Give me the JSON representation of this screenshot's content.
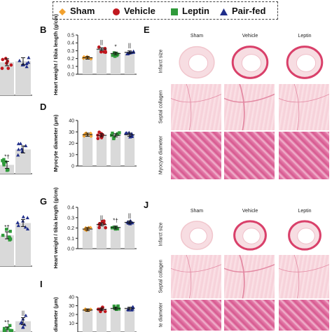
{
  "legend": {
    "items": [
      {
        "label": "Sham",
        "color": "#f2a12e",
        "marker": "diamond"
      },
      {
        "label": "Vehicle",
        "color": "#c0181f",
        "marker": "circle"
      },
      {
        "label": "Leptin",
        "color": "#2f9a3a",
        "marker": "square"
      },
      {
        "label": "Pair-fed",
        "color": "#1f2d8a",
        "marker": "triangle"
      }
    ]
  },
  "panels": {
    "B": "B",
    "D": "D",
    "E": "E",
    "G": "G",
    "I": "I",
    "J": "J"
  },
  "histology": {
    "E": {
      "columns": [
        "Sham",
        "Vehicle",
        "Leptin"
      ],
      "rows": [
        "Infarct size",
        "Septal collagen",
        "Myocyte diameter"
      ]
    },
    "J": {
      "columns": [
        "Sham",
        "Vehicle",
        "Leptin"
      ],
      "rows": [
        "Infarct size",
        "Septal collagen",
        "te diameter"
      ]
    }
  },
  "chart_data": [
    {
      "id": "A-partial",
      "type": "bar",
      "categories": [
        "Vehicle",
        "Pair-fed"
      ],
      "values": [
        null,
        null
      ],
      "points": [
        [
          0.5,
          0.62,
          0.55,
          0.66,
          0.58,
          0.5,
          0.6
        ],
        [
          0.6,
          0.66,
          0.55,
          0.63,
          0.68,
          0.58,
          0.64
        ]
      ]
    },
    {
      "id": "B",
      "type": "bar",
      "ylabel": "Heart weight / tibia length (g/cm)",
      "yticks": [
        "0.0",
        "0.1",
        "0.2",
        "0.3",
        "0.4",
        "0.5"
      ],
      "ylim": [
        0,
        0.5
      ],
      "categories": [
        "Sham",
        "Vehicle",
        "Leptin",
        "Pair-fed"
      ],
      "values": [
        0.21,
        0.32,
        0.265,
        0.28
      ],
      "annotations": [
        "",
        "||",
        "*",
        "||"
      ]
    },
    {
      "id": "C-partial",
      "type": "bar",
      "categories": [
        "Leptin",
        "Pair-fed"
      ],
      "values": [
        null,
        null
      ],
      "annotations": [
        "*†",
        ""
      ]
    },
    {
      "id": "D",
      "type": "bar",
      "ylabel": "Myocyte diameter (μm)",
      "yticks": [
        "0",
        "10",
        "20",
        "30",
        "40"
      ],
      "ylim": [
        0,
        40
      ],
      "categories": [
        "Sham",
        "Vehicle",
        "Leptin",
        "Pair-fed"
      ],
      "values": [
        27.5,
        27,
        27,
        27.5
      ]
    },
    {
      "id": "F-partial",
      "type": "bar",
      "categories": [
        "Leptin",
        "Pair-fed"
      ],
      "values": [
        null,
        null
      ],
      "annotations": [
        "*†",
        ""
      ]
    },
    {
      "id": "G",
      "type": "bar",
      "ylabel": "Heart weight / tibia length (g/cm)",
      "yticks": [
        "0.0",
        "0.1",
        "0.2",
        "0.3",
        "0.4"
      ],
      "ylim": [
        0,
        0.4
      ],
      "categories": [
        "Sham",
        "Vehicle",
        "Leptin",
        "Pair-fed"
      ],
      "values": [
        0.19,
        0.235,
        0.205,
        0.255
      ],
      "annotations": [
        "",
        "||",
        "*†",
        "||"
      ]
    },
    {
      "id": "H-partial",
      "type": "bar",
      "categories": [
        "Leptin",
        "Pair-fed"
      ],
      "values": [
        null,
        null
      ],
      "annotations": [
        "*†",
        "||"
      ]
    },
    {
      "id": "I",
      "type": "bar",
      "ylabel": "diameter (μm)",
      "yticks": [
        "10",
        "20",
        "30",
        "40"
      ],
      "ylim": [
        0,
        40
      ],
      "categories": [
        "Sham",
        "Vehicle",
        "Leptin",
        "Pair-fed"
      ],
      "values": [
        25,
        26,
        27,
        27
      ]
    }
  ]
}
